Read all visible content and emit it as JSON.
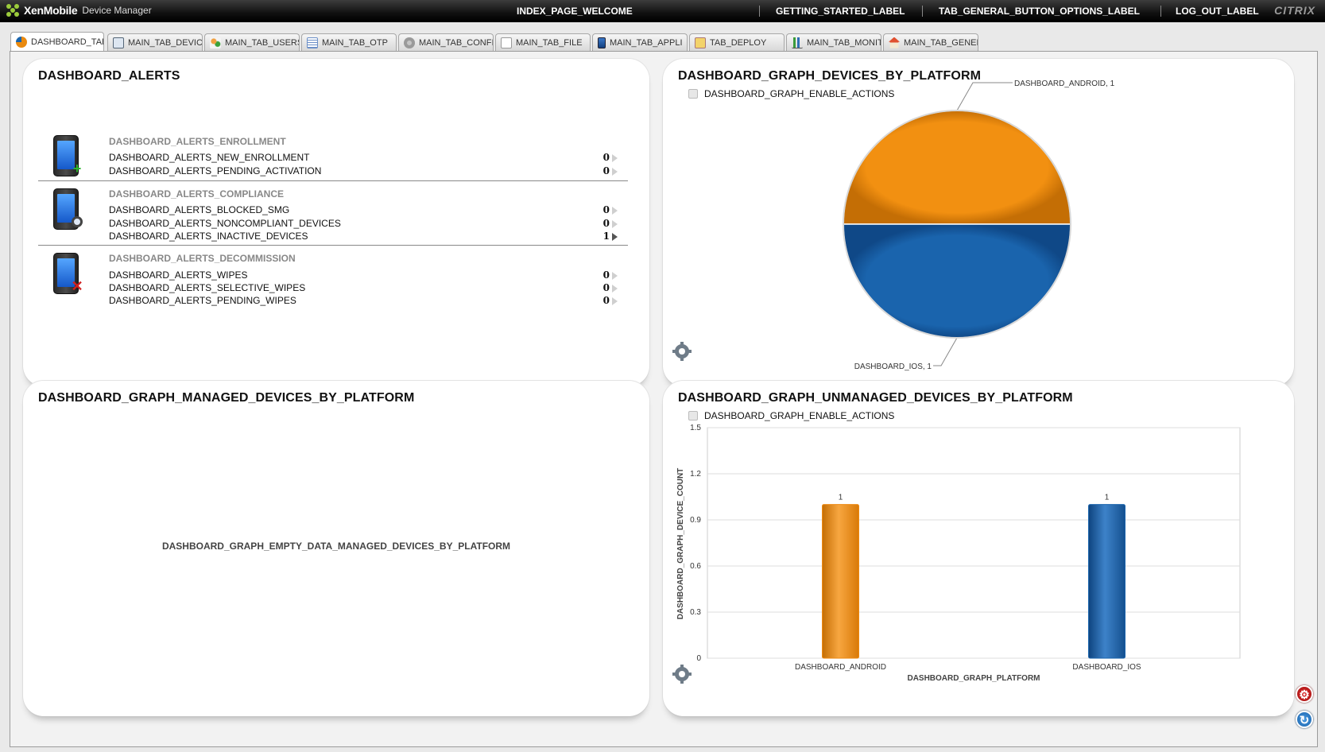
{
  "header": {
    "brand": "XenMobile",
    "brand_sub": "Device Manager",
    "welcome": "INDEX_PAGE_WELCOME",
    "getting_started": "GETTING_STARTED_LABEL",
    "options": "TAB_GENERAL_BUTTON_OPTIONS_LABEL",
    "logout": "LOG_OUT_LABEL",
    "vendor": "CITRIX"
  },
  "tabs": [
    {
      "label": "DASHBOARD_TAB",
      "icon": "pie-chart-icon",
      "active": true
    },
    {
      "label": "MAIN_TAB_DEVIC",
      "icon": "device-icon",
      "active": false
    },
    {
      "label": "MAIN_TAB_USERS",
      "icon": "users-icon",
      "active": false
    },
    {
      "label": "MAIN_TAB_OTP",
      "icon": "document-icon",
      "active": false
    },
    {
      "label": "MAIN_TAB_CONFI",
      "icon": "gear-icon",
      "active": false
    },
    {
      "label": "MAIN_TAB_FILE",
      "icon": "file-icon",
      "active": false
    },
    {
      "label": "MAIN_TAB_APPLI",
      "icon": "phone-app-icon",
      "active": false
    },
    {
      "label": "TAB_DEPLOY",
      "icon": "deploy-icon",
      "active": false
    },
    {
      "label": "MAIN_TAB_MONIT",
      "icon": "bar-chart-icon",
      "active": false
    },
    {
      "label": "MAIN_TAB_GENEF",
      "icon": "home-icon",
      "active": false
    }
  ],
  "alerts": {
    "title": "DASHBOARD_ALERTS",
    "sections": [
      {
        "heading": "DASHBOARD_ALERTS_ENROLLMENT",
        "icon": "phone-add-icon",
        "rows": [
          {
            "label": "DASHBOARD_ALERTS_NEW_ENROLLMENT",
            "value": "0"
          },
          {
            "label": "DASHBOARD_ALERTS_PENDING_ACTIVATION",
            "value": "0"
          }
        ]
      },
      {
        "heading": "DASHBOARD_ALERTS_COMPLIANCE",
        "icon": "phone-search-icon",
        "rows": [
          {
            "label": "DASHBOARD_ALERTS_BLOCKED_SMG",
            "value": "0"
          },
          {
            "label": "DASHBOARD_ALERTS_NONCOMPLIANT_DEVICES",
            "value": "0"
          },
          {
            "label": "DASHBOARD_ALERTS_INACTIVE_DEVICES",
            "value": "1"
          }
        ]
      },
      {
        "heading": "DASHBOARD_ALERTS_DECOMMISSION",
        "icon": "phone-remove-icon",
        "rows": [
          {
            "label": "DASHBOARD_ALERTS_WIPES",
            "value": "0"
          },
          {
            "label": "DASHBOARD_ALERTS_SELECTIVE_WIPES",
            "value": "0"
          },
          {
            "label": "DASHBOARD_ALERTS_PENDING_WIPES",
            "value": "0"
          }
        ]
      }
    ]
  },
  "platform_panel": {
    "title": "DASHBOARD_GRAPH_DEVICES_BY_PLATFORM",
    "enable_actions": "DASHBOARD_GRAPH_ENABLE_ACTIONS"
  },
  "managed_panel": {
    "title": "DASHBOARD_GRAPH_MANAGED_DEVICES_BY_PLATFORM",
    "empty_message": "DASHBOARD_GRAPH_EMPTY_DATA_MANAGED_DEVICES_BY_PLATFORM"
  },
  "unmanaged_panel": {
    "title": "DASHBOARD_GRAPH_UNMANAGED_DEVICES_BY_PLATFORM",
    "enable_actions": "DASHBOARD_GRAPH_ENABLE_ACTIONS"
  },
  "colors": {
    "android": "#ee8a12",
    "ios": "#1a64ad"
  },
  "chart_data": [
    {
      "type": "pie",
      "title": "DASHBOARD_GRAPH_DEVICES_BY_PLATFORM",
      "slices": [
        {
          "label": "DASHBOARD_ANDROID",
          "value": 1,
          "data_label": "DASHBOARD_ANDROID, 1"
        },
        {
          "label": "DASHBOARD_IOS",
          "value": 1,
          "data_label": "DASHBOARD_IOS, 1"
        }
      ]
    },
    {
      "type": "bar",
      "title": "DASHBOARD_GRAPH_UNMANAGED_DEVICES_BY_PLATFORM",
      "categories": [
        "DASHBOARD_ANDROID",
        "DASHBOARD_IOS"
      ],
      "values": [
        1,
        1
      ],
      "xlabel": "DASHBOARD_GRAPH_PLATFORM",
      "ylabel": "DASHBOARD_GRAPH_DEVICE_COUNT",
      "ylim": [
        0,
        1.5
      ],
      "yticks": [
        0,
        0.3,
        0.6,
        0.9,
        1.2,
        1.5
      ],
      "ytick_labels": [
        "0",
        "0.3",
        "0.6",
        "0.9",
        "1.2",
        "1.5"
      ],
      "grid": true
    }
  ]
}
